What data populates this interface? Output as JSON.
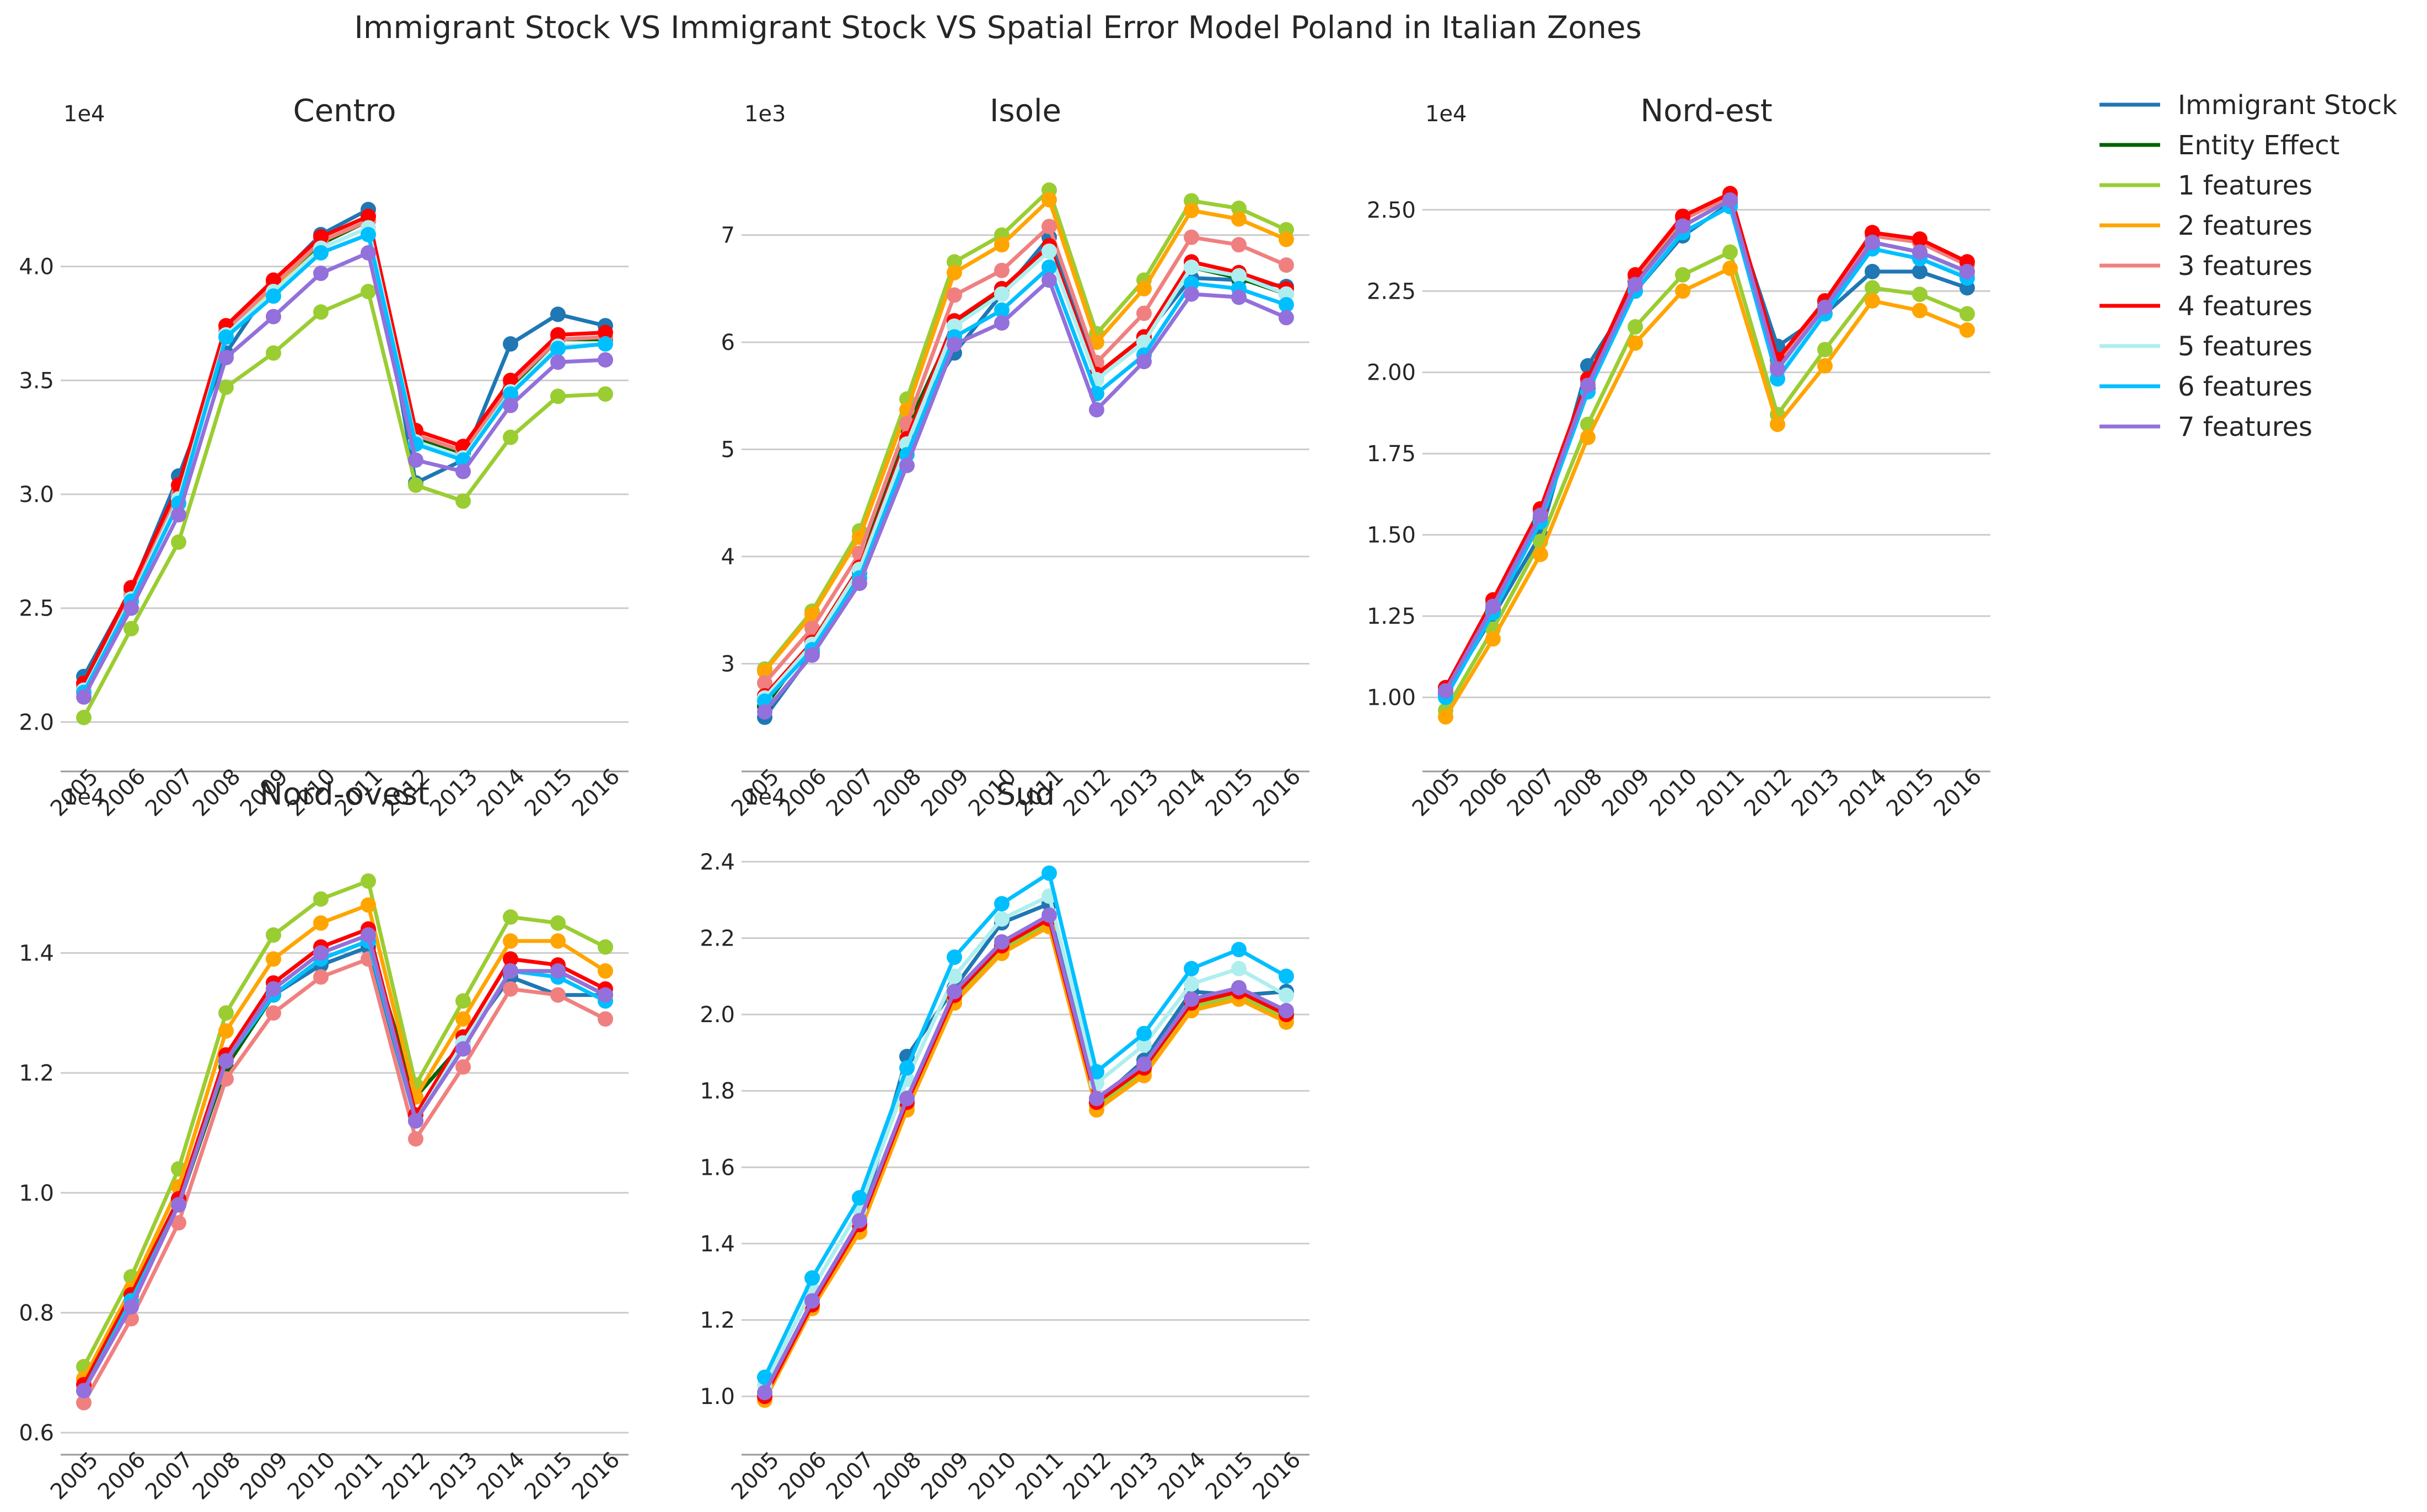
{
  "title": "Immigrant Stock VS Immigrant Stock VS Spatial Error Model Poland in Italian Zones",
  "legend": [
    {
      "label": "Immigrant Stock",
      "color": "#1f77b4"
    },
    {
      "label": "Entity Effect",
      "color": "#006400"
    },
    {
      "label": "1 features",
      "color": "#9acd32"
    },
    {
      "label": "2 features",
      "color": "#ffa500"
    },
    {
      "label": "3 features",
      "color": "#f08080"
    },
    {
      "label": "4 features",
      "color": "#ff0000"
    },
    {
      "label": "5 features",
      "color": "#afeeee"
    },
    {
      "label": "6 features",
      "color": "#00bfff"
    },
    {
      "label": "7 features",
      "color": "#9370db"
    }
  ],
  "chart_data": [
    {
      "type": "line",
      "title": "Centro",
      "exponent_label": "1e4",
      "x": [
        "2005",
        "2006",
        "2007",
        "2008",
        "2009",
        "2010",
        "2011",
        "2012",
        "2013",
        "2014",
        "2015",
        "2016"
      ],
      "ylim": [
        1.88,
        4.42
      ],
      "yticks": [
        2.0,
        2.5,
        3.0,
        3.5,
        4.0
      ],
      "ytick_labels": [
        "2.0",
        "2.5",
        "3.0",
        "3.5",
        "4.0"
      ],
      "grid": true,
      "series": [
        {
          "name": "Immigrant Stock",
          "values": [
            2.2,
            2.58,
            3.08,
            3.62,
            3.93,
            4.14,
            4.25,
            3.05,
            3.15,
            3.66,
            3.79,
            3.74
          ]
        },
        {
          "name": "Entity Effect",
          "values": [
            2.15,
            2.55,
            3.0,
            3.7,
            3.9,
            4.1,
            4.2,
            3.25,
            3.18,
            3.47,
            3.68,
            3.68
          ]
        },
        {
          "name": "1 features",
          "values": [
            2.02,
            2.41,
            2.79,
            3.47,
            3.62,
            3.8,
            3.89,
            3.04,
            2.97,
            3.25,
            3.43,
            3.44
          ]
        },
        {
          "name": "2 features",
          "values": [
            2.15,
            2.55,
            3.0,
            3.72,
            3.91,
            4.11,
            4.2,
            3.26,
            3.19,
            3.48,
            3.68,
            3.69
          ]
        },
        {
          "name": "3 features",
          "values": [
            2.15,
            2.56,
            3.0,
            3.72,
            3.92,
            4.11,
            4.2,
            3.26,
            3.19,
            3.48,
            3.68,
            3.69
          ]
        },
        {
          "name": "4 features",
          "values": [
            2.17,
            2.59,
            3.04,
            3.74,
            3.94,
            4.13,
            4.22,
            3.28,
            3.21,
            3.5,
            3.7,
            3.71
          ]
        },
        {
          "name": "5 features",
          "values": [
            2.14,
            2.54,
            2.98,
            3.7,
            3.89,
            4.08,
            4.17,
            3.23,
            3.16,
            3.45,
            3.65,
            3.66
          ]
        },
        {
          "name": "6 features",
          "values": [
            2.13,
            2.53,
            2.96,
            3.69,
            3.87,
            4.06,
            4.14,
            3.22,
            3.15,
            3.44,
            3.64,
            3.66
          ]
        },
        {
          "name": "7 features",
          "values": [
            2.11,
            2.5,
            2.91,
            3.6,
            3.78,
            3.97,
            4.06,
            3.15,
            3.1,
            3.39,
            3.58,
            3.59
          ]
        }
      ]
    },
    {
      "type": "line",
      "title": "Isole",
      "exponent_label": "1e3",
      "x": [
        "2005",
        "2006",
        "2007",
        "2008",
        "2009",
        "2010",
        "2011",
        "2012",
        "2013",
        "2014",
        "2015",
        "2016"
      ],
      "ylim": [
        2.2,
        7.6
      ],
      "yticks": [
        3,
        4,
        5,
        6,
        7
      ],
      "ytick_labels": [
        "3",
        "4",
        "5",
        "6",
        "7"
      ],
      "grid": true,
      "series": [
        {
          "name": "Immigrant Stock",
          "values": [
            2.5,
            3.1,
            3.85,
            5.2,
            5.9,
            6.45,
            6.98,
            5.7,
            6.05,
            6.6,
            6.58,
            6.52
          ]
        },
        {
          "name": "Entity Effect",
          "values": [
            2.6,
            3.2,
            3.9,
            5.2,
            6.15,
            6.5,
            6.85,
            5.7,
            6.05,
            6.7,
            6.6,
            6.45
          ]
        },
        {
          "name": "1 features",
          "values": [
            2.95,
            3.49,
            4.24,
            5.47,
            6.75,
            7.0,
            7.42,
            6.08,
            6.58,
            7.32,
            7.25,
            7.05
          ]
        },
        {
          "name": "2 features",
          "values": [
            2.93,
            3.46,
            4.18,
            5.37,
            6.65,
            6.91,
            7.33,
            6.0,
            6.5,
            7.23,
            7.15,
            6.96
          ]
        },
        {
          "name": "3 features",
          "values": [
            2.82,
            3.33,
            4.03,
            5.24,
            6.44,
            6.67,
            7.08,
            5.81,
            6.27,
            6.98,
            6.91,
            6.72
          ]
        },
        {
          "name": "4 features",
          "values": [
            2.7,
            3.2,
            3.9,
            5.1,
            6.2,
            6.5,
            6.9,
            5.7,
            6.05,
            6.75,
            6.65,
            6.5
          ]
        },
        {
          "name": "5 features",
          "values": [
            2.68,
            3.18,
            3.88,
            5.05,
            6.15,
            6.45,
            6.85,
            5.65,
            6.0,
            6.7,
            6.62,
            6.45
          ]
        },
        {
          "name": "6 features",
          "values": [
            2.65,
            3.13,
            3.8,
            4.95,
            6.05,
            6.3,
            6.7,
            5.52,
            5.88,
            6.55,
            6.5,
            6.35
          ]
        },
        {
          "name": "7 features",
          "values": [
            2.55,
            3.08,
            3.75,
            4.85,
            5.98,
            6.18,
            6.58,
            5.37,
            5.82,
            6.45,
            6.42,
            6.23
          ]
        }
      ]
    },
    {
      "type": "line",
      "title": "Nord-est",
      "exponent_label": "1e4",
      "x": [
        "2005",
        "2006",
        "2007",
        "2008",
        "2009",
        "2010",
        "2011",
        "2012",
        "2013",
        "2014",
        "2015",
        "2016"
      ],
      "ylim": [
        0.84,
        2.62
      ],
      "yticks": [
        1.0,
        1.25,
        1.5,
        1.75,
        2.0,
        2.25,
        2.5
      ],
      "ytick_labels": [
        "1.00",
        "1.25",
        "1.50",
        "1.75",
        "2.00",
        "2.25",
        "2.50"
      ],
      "grid": true,
      "series": [
        {
          "name": "Immigrant Stock",
          "values": [
            1.01,
            1.25,
            1.5,
            2.02,
            2.25,
            2.42,
            2.52,
            2.08,
            2.18,
            2.31,
            2.31,
            2.26
          ]
        },
        {
          "name": "Entity Effect",
          "values": [
            1.02,
            1.27,
            1.55,
            1.95,
            2.28,
            2.45,
            2.53,
            2.02,
            2.2,
            2.4,
            2.37,
            2.31
          ]
        },
        {
          "name": "1 features",
          "values": [
            0.96,
            1.21,
            1.48,
            1.84,
            2.14,
            2.3,
            2.37,
            1.87,
            2.07,
            2.26,
            2.24,
            2.18
          ]
        },
        {
          "name": "2 features",
          "values": [
            0.94,
            1.18,
            1.44,
            1.8,
            2.09,
            2.25,
            2.32,
            1.84,
            2.02,
            2.22,
            2.19,
            2.13
          ]
        },
        {
          "name": "3 features",
          "values": [
            1.03,
            1.29,
            1.57,
            1.97,
            2.29,
            2.47,
            2.54,
            2.02,
            2.21,
            2.42,
            2.4,
            2.33
          ]
        },
        {
          "name": "4 features",
          "values": [
            1.03,
            1.3,
            1.58,
            1.98,
            2.3,
            2.48,
            2.55,
            2.04,
            2.22,
            2.43,
            2.41,
            2.34
          ]
        },
        {
          "name": "5 features",
          "values": [
            1.0,
            1.26,
            1.54,
            1.94,
            2.25,
            2.43,
            2.51,
            2.0,
            2.18,
            2.38,
            2.35,
            2.3
          ]
        },
        {
          "name": "6 features",
          "values": [
            1.0,
            1.26,
            1.54,
            1.94,
            2.25,
            2.43,
            2.51,
            1.98,
            2.18,
            2.38,
            2.35,
            2.29
          ]
        },
        {
          "name": "7 features",
          "values": [
            1.02,
            1.28,
            1.56,
            1.96,
            2.27,
            2.45,
            2.53,
            2.01,
            2.2,
            2.4,
            2.37,
            2.31
          ]
        }
      ]
    },
    {
      "type": "line",
      "title": "Nord-ovest",
      "exponent_label": "1e4",
      "x": [
        "2005",
        "2006",
        "2007",
        "2008",
        "2009",
        "2010",
        "2011",
        "2012",
        "2013",
        "2014",
        "2015",
        "2016"
      ],
      "ylim": [
        0.6,
        1.565
      ],
      "yticks": [
        0.6,
        0.8,
        1.0,
        1.2,
        1.4
      ],
      "ytick_labels": [
        "0.6",
        "0.8",
        "1.0",
        "1.2",
        "1.4"
      ],
      "grid": true,
      "series": [
        {
          "name": "Immigrant Stock",
          "values": [
            0.67,
            0.82,
            0.99,
            1.22,
            1.33,
            1.38,
            1.41,
            1.12,
            1.25,
            1.36,
            1.33,
            1.33
          ]
        },
        {
          "name": "Entity Effect",
          "values": [
            0.67,
            0.82,
            0.98,
            1.21,
            1.33,
            1.39,
            1.42,
            1.16,
            1.25,
            1.37,
            1.37,
            1.33
          ]
        },
        {
          "name": "1 features",
          "values": [
            0.71,
            0.86,
            1.04,
            1.3,
            1.43,
            1.49,
            1.52,
            1.18,
            1.32,
            1.46,
            1.45,
            1.41
          ]
        },
        {
          "name": "2 features",
          "values": [
            0.69,
            0.84,
            1.01,
            1.27,
            1.39,
            1.45,
            1.48,
            1.16,
            1.29,
            1.42,
            1.42,
            1.37
          ]
        },
        {
          "name": "3 features",
          "values": [
            0.65,
            0.79,
            0.95,
            1.19,
            1.3,
            1.36,
            1.39,
            1.09,
            1.21,
            1.34,
            1.33,
            1.29
          ]
        },
        {
          "name": "4 features",
          "values": [
            0.68,
            0.83,
            0.99,
            1.23,
            1.35,
            1.41,
            1.44,
            1.13,
            1.26,
            1.39,
            1.38,
            1.34
          ]
        },
        {
          "name": "5 features",
          "values": [
            0.67,
            0.82,
            0.98,
            1.22,
            1.34,
            1.4,
            1.43,
            1.12,
            1.25,
            1.37,
            1.36,
            1.32
          ]
        },
        {
          "name": "6 features",
          "values": [
            0.67,
            0.82,
            0.98,
            1.22,
            1.33,
            1.39,
            1.42,
            1.12,
            1.24,
            1.37,
            1.36,
            1.32
          ]
        },
        {
          "name": "7 features",
          "values": [
            0.67,
            0.81,
            0.98,
            1.22,
            1.34,
            1.4,
            1.43,
            1.12,
            1.24,
            1.37,
            1.37,
            1.33
          ]
        }
      ]
    },
    {
      "type": "line",
      "title": "Sud",
      "exponent_label": "1e4",
      "x": [
        "2005",
        "2006",
        "2007",
        "2008",
        "2009",
        "2010",
        "2011",
        "2012",
        "2013",
        "2014",
        "2015",
        "2016"
      ],
      "ylim": [
        0.905,
        2.42
      ],
      "yticks": [
        1.0,
        1.2,
        1.4,
        1.6,
        1.8,
        2.0,
        2.2,
        2.4
      ],
      "ytick_labels": [
        "1.0",
        "1.2",
        "1.4",
        "1.6",
        "1.8",
        "2.0",
        "2.2",
        "2.4"
      ],
      "grid": true,
      "series": [
        {
          "name": "Immigrant Stock",
          "values": [
            1.0,
            1.24,
            1.45,
            1.89,
            2.07,
            2.24,
            2.29,
            1.77,
            1.88,
            2.06,
            2.05,
            2.06
          ]
        },
        {
          "name": "Entity Effect",
          "values": [
            1.0,
            1.24,
            1.45,
            1.77,
            2.05,
            2.18,
            2.25,
            1.77,
            1.86,
            2.04,
            2.06,
            2.0
          ]
        },
        {
          "name": "1 features",
          "values": [
            1.0,
            1.24,
            1.44,
            1.76,
            2.04,
            2.17,
            2.24,
            1.76,
            1.85,
            2.02,
            2.05,
            1.99
          ]
        },
        {
          "name": "2 features",
          "values": [
            0.99,
            1.23,
            1.43,
            1.75,
            2.03,
            2.16,
            2.23,
            1.75,
            1.84,
            2.01,
            2.04,
            1.98
          ]
        },
        {
          "name": "3 features",
          "values": [
            1.0,
            1.24,
            1.45,
            1.77,
            2.05,
            2.18,
            2.25,
            1.77,
            1.86,
            2.03,
            2.06,
            2.0
          ]
        },
        {
          "name": "4 features",
          "values": [
            1.0,
            1.24,
            1.45,
            1.77,
            2.05,
            2.18,
            2.25,
            1.77,
            1.86,
            2.03,
            2.06,
            2.0
          ]
        },
        {
          "name": "5 features",
          "values": [
            1.03,
            1.28,
            1.49,
            1.83,
            2.1,
            2.25,
            2.31,
            1.82,
            1.92,
            2.08,
            2.12,
            2.05
          ]
        },
        {
          "name": "6 features",
          "values": [
            1.05,
            1.31,
            1.52,
            1.86,
            2.15,
            2.29,
            2.37,
            1.85,
            1.95,
            2.12,
            2.17,
            2.1
          ]
        },
        {
          "name": "7 features",
          "values": [
            1.01,
            1.25,
            1.46,
            1.78,
            2.06,
            2.19,
            2.26,
            1.78,
            1.87,
            2.04,
            2.07,
            2.01
          ]
        }
      ]
    }
  ]
}
